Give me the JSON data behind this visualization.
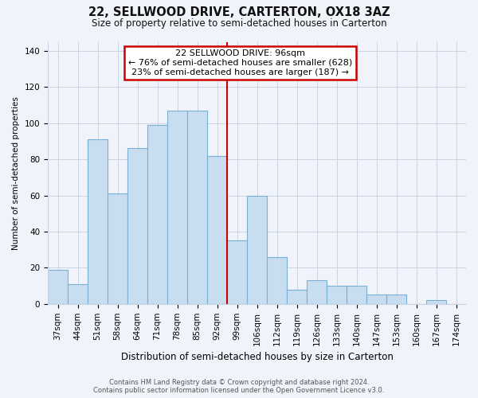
{
  "title": "22, SELLWOOD DRIVE, CARTERTON, OX18 3AZ",
  "subtitle": "Size of property relative to semi-detached houses in Carterton",
  "xlabel": "Distribution of semi-detached houses by size in Carterton",
  "ylabel": "Number of semi-detached properties",
  "categories": [
    "37sqm",
    "44sqm",
    "51sqm",
    "58sqm",
    "64sqm",
    "71sqm",
    "78sqm",
    "85sqm",
    "92sqm",
    "99sqm",
    "106sqm",
    "112sqm",
    "119sqm",
    "126sqm",
    "133sqm",
    "140sqm",
    "147sqm",
    "153sqm",
    "160sqm",
    "167sqm",
    "174sqm"
  ],
  "values": [
    19,
    11,
    91,
    61,
    86,
    99,
    107,
    107,
    82,
    35,
    60,
    26,
    8,
    13,
    10,
    10,
    5,
    5,
    0,
    2,
    0
  ],
  "bar_color": "#c9ddf0",
  "bar_edge_color": "#7aafd4",
  "vline_color": "#cc0000",
  "annotation_title": "22 SELLWOOD DRIVE: 96sqm",
  "annotation_line1": "← 76% of semi-detached houses are smaller (628)",
  "annotation_line2": "23% of semi-detached houses are larger (187) →",
  "annotation_box_color": "white",
  "annotation_box_edge": "#cc0000",
  "ylim": [
    0,
    145
  ],
  "yticks": [
    0,
    20,
    40,
    60,
    80,
    100,
    120,
    140
  ],
  "footer_line1": "Contains HM Land Registry data © Crown copyright and database right 2024.",
  "footer_line2": "Contains public sector information licensed under the Open Government Licence v3.0.",
  "bg_color": "#f0f4fa",
  "grid_color": "#c8d4e4",
  "title_fontsize": 10.5,
  "subtitle_fontsize": 8.5,
  "xlabel_fontsize": 8.5,
  "ylabel_fontsize": 7.5,
  "tick_fontsize": 7.5,
  "annotation_fontsize": 8.0,
  "footer_fontsize": 6.0
}
